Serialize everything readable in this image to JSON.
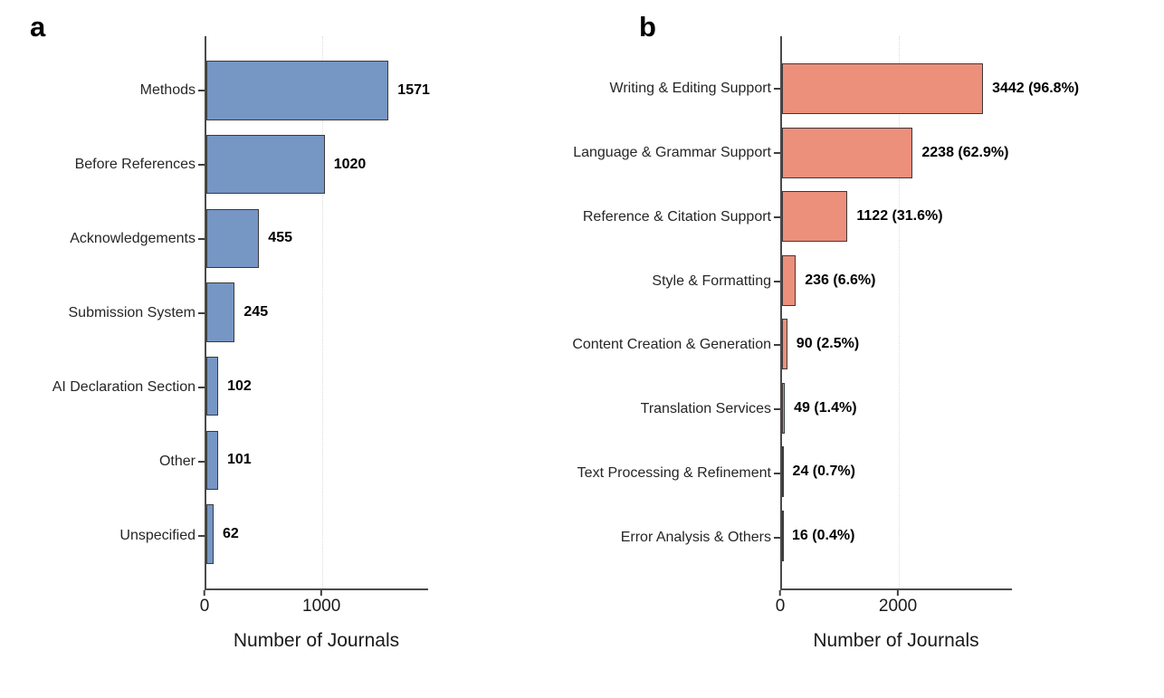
{
  "figure": {
    "background": "#ffffff",
    "axis_color": "#4a4a4a",
    "gridline_color": "#dcdcdc",
    "panel_letters": [
      "a",
      "b"
    ]
  },
  "chart_data": [
    {
      "type": "bar",
      "orientation": "horizontal",
      "panel_label": "a",
      "title": "",
      "xlabel": "Number of Journals",
      "categories": [
        "Methods",
        "Before References",
        "Acknowledgements",
        "Submission System",
        "AI Declaration Section",
        "Other",
        "Unspecified"
      ],
      "values": [
        1571,
        1020,
        455,
        245,
        102,
        101,
        62
      ],
      "bar_value_labels": [
        "1571",
        "1020",
        "455",
        "245",
        "102",
        "101",
        "62"
      ],
      "xticks": [
        0,
        1000
      ],
      "xtick_labels": [
        "0",
        "1000"
      ],
      "xlim": [
        0,
        1912
      ],
      "bar_color": "#7696C4",
      "bar_border_color": "#3a3a3a",
      "grid": "dotted vertical gridline at nonzero x ticks",
      "legend": "none"
    },
    {
      "type": "bar",
      "orientation": "horizontal",
      "panel_label": "b",
      "title": "",
      "xlabel": "Number of Journals",
      "categories": [
        "Writing & Editing Support",
        "Language & Grammar Support",
        "Reference & Citation Support",
        "Style & Formatting",
        "Content Creation & Generation",
        "Translation Services",
        "Text Processing & Refinement",
        "Error Analysis & Others"
      ],
      "values": [
        3442,
        2238,
        1122,
        236,
        90,
        49,
        24,
        16
      ],
      "bar_value_labels": [
        "3442 (96.8%)",
        "2238 (62.9%)",
        "1122 (31.6%)",
        "236 (6.6%)",
        "90 (2.5%)",
        "49 (1.4%)",
        "24 (0.7%)",
        "16 (0.4%)"
      ],
      "xticks": [
        0,
        2000
      ],
      "xtick_labels": [
        "0",
        "2000"
      ],
      "xlim": [
        0,
        3937
      ],
      "bar_color": "#EC8F7B",
      "bar_border_color": "#3a3a3a",
      "grid": "dotted vertical gridline at nonzero x ticks",
      "legend": "none"
    }
  ]
}
